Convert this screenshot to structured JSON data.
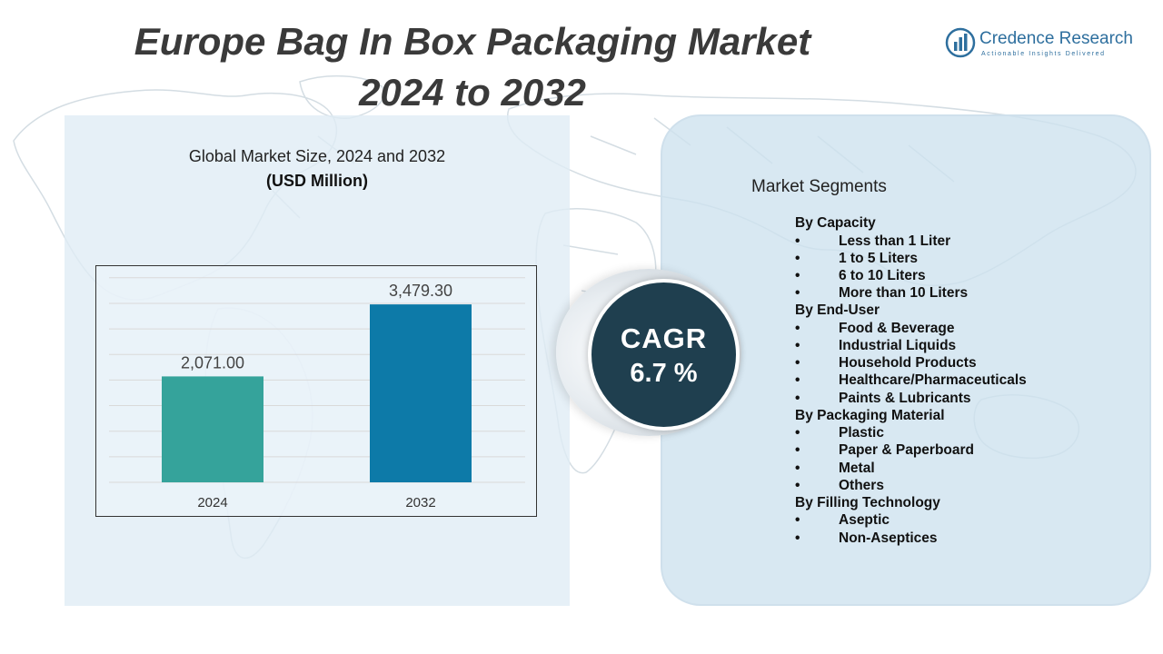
{
  "title_line1": "Europe Bag In Box Packaging Market",
  "title_line2": "2024 to 2032",
  "logo": {
    "name": "Credence Research",
    "tagline": "Actionable Insights Delivered",
    "icon": "bar-chart-logo-icon",
    "color": "#2e6f9e"
  },
  "chart_heading": "Global Market Size, 2024 and 2032",
  "chart_unit": "(USD Million)",
  "chart_data": {
    "type": "bar",
    "categories": [
      "2024",
      "2032"
    ],
    "values": [
      2071.0,
      3479.3
    ],
    "value_labels": [
      "2,071.00",
      "3,479.30"
    ],
    "colors": [
      "#35a39b",
      "#0d7aa8"
    ],
    "title": "Global Market Size, 2024 and 2032",
    "ylabel": "(USD Million)",
    "xlabel": "",
    "ylim": [
      0,
      4000
    ],
    "grid": true,
    "legend": "none"
  },
  "cagr": {
    "label": "CAGR",
    "value": "6.7 %"
  },
  "segments_title": "Market Segments",
  "segments": [
    {
      "name": "By Capacity",
      "items": [
        "Less than 1 Liter",
        "1 to 5 Liters",
        "6 to 10 Liters",
        "More than 10 Liters"
      ]
    },
    {
      "name": "By End-User",
      "items": [
        "Food & Beverage",
        "Industrial Liquids",
        "Household Products",
        "Healthcare/Pharmaceuticals",
        "Paints & Lubricants"
      ]
    },
    {
      "name": "By Packaging Material",
      "items": [
        "Plastic",
        "Paper & Paperboard",
        "Metal",
        "Others"
      ]
    },
    {
      "name": "By Filling Technology",
      "items": [
        "Aseptic",
        "Non-Aseptices"
      ]
    }
  ],
  "bullet": "•"
}
